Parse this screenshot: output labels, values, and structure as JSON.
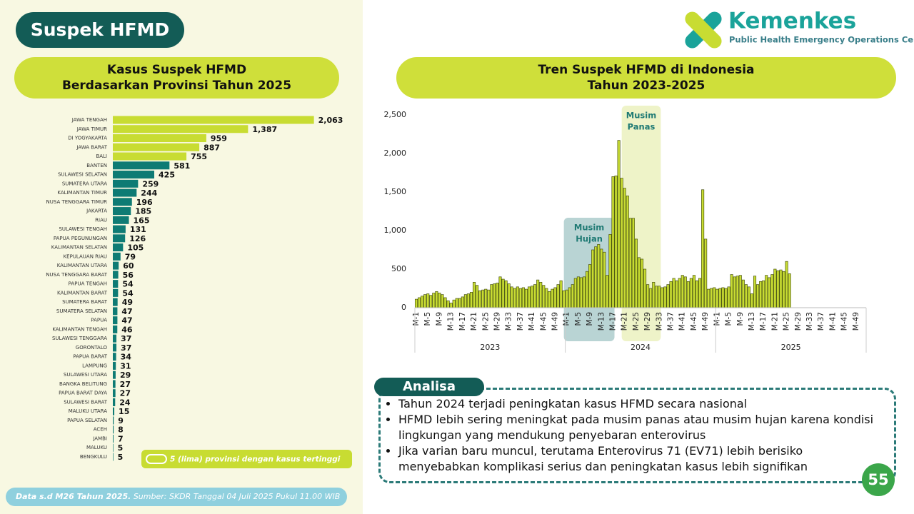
{
  "header": {
    "title": "Suspek HFMD",
    "logo_name": "Kemenkes",
    "logo_subtitle": "Public Health Emergency Operations Center"
  },
  "chart_data": [
    {
      "type": "hbar",
      "title": [
        "Kasus Suspek HFMD",
        "Berdasarkan Provinsi Tahun 2025"
      ],
      "categories": [
        "JAWA TENGAH",
        "JAWA TIMUR",
        "DI YOGYAKARTA",
        "JAWA BARAT",
        "BALI",
        "BANTEN",
        "SULAWESI SELATAN",
        "SUMATERA UTARA",
        "KALIMANTAN TIMUR",
        "NUSA TENGGARA TIMUR",
        "JAKARTA",
        "RIAU",
        "SULAWESI TENGAH",
        "PAPUA PEGUNUNGAN",
        "KALIMANTAN SELATAN",
        "KEPULAUAN RIAU",
        "KALIMANTAN UTARA",
        "NUSA TENGGARA BARAT",
        "PAPUA TENGAH",
        "KALIMANTAN BARAT",
        "SUMATERA BARAT",
        "SUMATERA SELATAN",
        "PAPUA",
        "KALIMANTAN TENGAH",
        "SULAWESI TENGGARA",
        "GORONTALO",
        "PAPUA BARAT",
        "LAMPUNG",
        "SULAWESI UTARA",
        "BANGKA BELITUNG",
        "PAPUA BARAT DAYA",
        "SULAWESI BARAT",
        "MALUKU UTARA",
        "PAPUA SELATAN",
        "ACEH",
        "JAMBI",
        "MALUKU",
        "BENGKULU"
      ],
      "values": [
        2063,
        1387,
        959,
        887,
        755,
        581,
        425,
        259,
        244,
        196,
        185,
        165,
        131,
        126,
        105,
        79,
        60,
        56,
        54,
        54,
        49,
        47,
        47,
        46,
        37,
        37,
        34,
        31,
        29,
        27,
        27,
        24,
        15,
        9,
        8,
        7,
        5,
        5
      ],
      "value_labels": [
        "2,063",
        "1,387",
        "959",
        "887",
        "755",
        "581",
        "425",
        "259",
        "244",
        "196",
        "185",
        "165",
        "131",
        "126",
        "105",
        "79",
        "60",
        "56",
        "54",
        "54",
        "49",
        "47",
        "47",
        "46",
        "37",
        "37",
        "34",
        "31",
        "29",
        "27",
        "27",
        "24",
        "15",
        "9",
        "8",
        "7",
        "5",
        "5"
      ],
      "colors": [
        "#c8dc32",
        "#c8dc32",
        "#c8dc32",
        "#c8dc32",
        "#c8dc32",
        "#0e7b74",
        "#0e7b74",
        "#0e7b74",
        "#0e7b74",
        "#0e7b74",
        "#0e7b74",
        "#0e7b74",
        "#0e7b74",
        "#0e7b74",
        "#0e7b74",
        "#0e7b74",
        "#0e7b74",
        "#0e7b74",
        "#0e7b74",
        "#0e7b74",
        "#0e7b74",
        "#0e7b74",
        "#0e7b74",
        "#0e7b74",
        "#0e7b74",
        "#0e7b74",
        "#0e7b74",
        "#0e7b74",
        "#0e7b74",
        "#0e7b74",
        "#0e7b74",
        "#0e7b74",
        "#0e7b74",
        "#0e7b74",
        "#0e7b74",
        "#0e7b74",
        "#0e7b74",
        "#0e7b74"
      ],
      "xlim": [
        0,
        2300
      ],
      "legend_note": "5 (lima) provinsi dengan kasus tertinggi"
    },
    {
      "type": "bar",
      "title": [
        "Tren Suspek HFMD di Indonesia",
        "Tahun 2023-2025"
      ],
      "categories": [
        "M-1",
        null,
        null,
        null,
        "M-5",
        null,
        null,
        null,
        "M-9",
        null,
        null,
        null,
        "M-13",
        null,
        null,
        null,
        "M-17",
        null,
        null,
        null,
        "M-21",
        null,
        null,
        null,
        "M-25",
        null,
        null,
        null,
        "M-29",
        null,
        null,
        null,
        "M-33",
        null,
        null,
        null,
        "M-37",
        null,
        null,
        null,
        "M-41",
        null,
        null,
        null,
        "M-45",
        null,
        null,
        null,
        "M-49",
        null,
        null,
        null,
        "M-1",
        null,
        null,
        null,
        "M-5",
        null,
        null,
        null,
        "M-9",
        null,
        null,
        null,
        "M-13",
        null,
        null,
        null,
        "M-17",
        null,
        null,
        null,
        "M-21",
        null,
        null,
        null,
        "M-25",
        null,
        null,
        null,
        "M-29",
        null,
        null,
        null,
        "M-33",
        null,
        null,
        null,
        "M-37",
        null,
        null,
        null,
        "M-41",
        null,
        null,
        null,
        "M-45",
        null,
        null,
        null,
        "M-49",
        null,
        null,
        null,
        "M-1",
        null,
        null,
        null,
        "M-5",
        null,
        null,
        null,
        "M-9",
        null,
        null,
        null,
        "M-13",
        null,
        null,
        null,
        "M-17",
        null,
        null,
        null,
        "M-21",
        null,
        null,
        null,
        "M-25",
        null,
        null,
        null,
        "M-29",
        null,
        null,
        null,
        "M-33",
        null,
        null,
        null,
        "M-37",
        null,
        null,
        null,
        "M-41",
        null,
        null,
        null,
        "M-45",
        null,
        null,
        null,
        "M-49",
        null,
        null,
        null
      ],
      "groups": [
        "2023",
        "2024",
        "2025"
      ],
      "values": [
        110,
        130,
        150,
        170,
        180,
        160,
        190,
        210,
        190,
        170,
        130,
        90,
        60,
        100,
        120,
        120,
        140,
        170,
        180,
        200,
        330,
        290,
        220,
        230,
        240,
        230,
        300,
        310,
        320,
        400,
        370,
        350,
        310,
        270,
        250,
        270,
        250,
        260,
        240,
        270,
        280,
        300,
        360,
        330,
        290,
        250,
        210,
        240,
        260,
        300,
        350,
        220,
        230,
        260,
        300,
        380,
        400,
        390,
        400,
        470,
        560,
        750,
        790,
        820,
        760,
        720,
        420,
        950,
        1700,
        1710,
        2170,
        1680,
        1550,
        1450,
        1160,
        1160,
        890,
        650,
        630,
        500,
        300,
        250,
        330,
        280,
        280,
        260,
        270,
        300,
        340,
        380,
        350,
        380,
        420,
        400,
        340,
        380,
        420,
        350,
        380,
        1530,
        890,
        240,
        250,
        260,
        240,
        250,
        260,
        250,
        270,
        430,
        400,
        410,
        420,
        360,
        300,
        270,
        180,
        410,
        300,
        340,
        350,
        420,
        390,
        430,
        500,
        480,
        490,
        470,
        600,
        440,
        null,
        null,
        null,
        null,
        null,
        null,
        null,
        null,
        null,
        null,
        null,
        null,
        null,
        null,
        null,
        null,
        null,
        null,
        null,
        null,
        null,
        null,
        null,
        null,
        null,
        null
      ],
      "color": "#c8dc32",
      "ylim": [
        0,
        2500
      ],
      "yticks": [
        0,
        500,
        {
          "value": 1000,
          "label": "1,000"
        },
        {
          "value": 1500,
          "label": "1,500"
        },
        {
          "value": 2000,
          "label": "2,000"
        },
        {
          "value": 2500,
          "label": "2,500"
        }
      ],
      "annotations": [
        [
          "Musim",
          "Hujan"
        ],
        [
          "Musim",
          "Panas"
        ]
      ]
    }
  ],
  "analysis": {
    "title": "Analisa",
    "bullets": [
      "Tahun 2024 terjadi peningkatan kasus HFMD secara nasional",
      "HFMD lebih sering meningkat pada musim panas atau musim hujan karena kondisi lingkungan yang mendukung penyebaran enterovirus",
      "Jika varian baru muncul, terutama Enterovirus 71 (EV71) lebih berisiko menyebabkan komplikasi serius dan peningkatan kasus lebih signifikan"
    ]
  },
  "footer": {
    "note": "Data s.d M26 Tahun 2025.",
    "source": "Sumber: SKDR Tanggal 04 Juli 2025 Pukul 11.00 WIB"
  },
  "page_number": "55"
}
